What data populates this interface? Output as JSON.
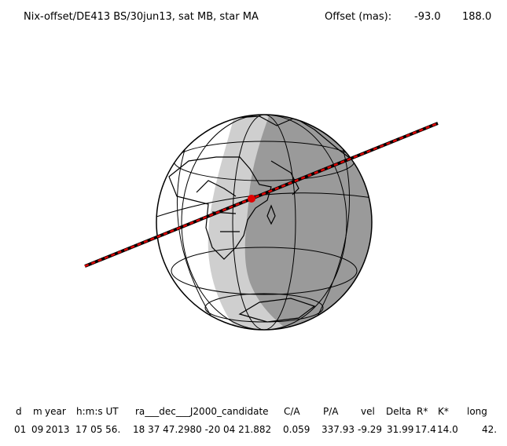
{
  "header": {
    "title": "Nix-offset/DE413 BS/30jun13, sat MB, star MA",
    "offset_label": "Offset (mas):",
    "offset_values": [
      "-93.0",
      "188.0"
    ]
  },
  "table": {
    "headers": [
      "d",
      "m",
      "year",
      "h:m:s UT",
      "ra___dec___J2000_candidate",
      "C/A",
      "P/A",
      "vel",
      "Delta",
      "R*",
      "K*",
      "long"
    ],
    "rows": [
      [
        "01",
        "09",
        "2013",
        "17 05 56.",
        "18 37 47.2980 -20 04 21.882",
        "0.059",
        "337.93",
        "-9.29",
        "31.99",
        "17.4",
        "14.0",
        "42."
      ]
    ]
  }
}
